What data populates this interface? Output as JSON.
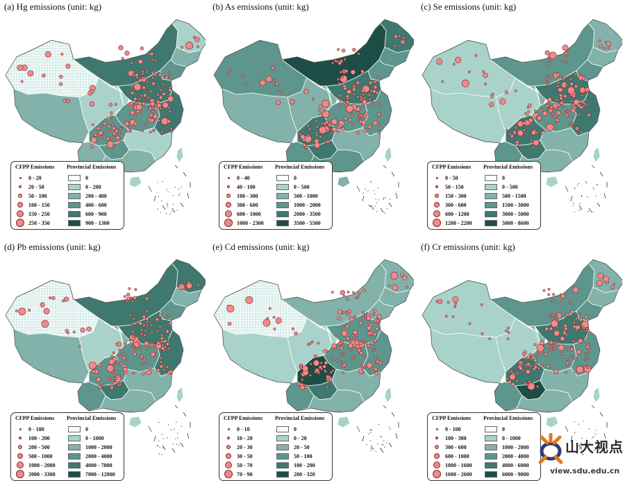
{
  "palette": {
    "none": "#f4fbfa",
    "l1": "#a8d2ca",
    "l2": "#82b2aa",
    "l3": "#5e958c",
    "l4": "#3f786f",
    "l5": "#1c4e46",
    "circle_fill": "#f08a8a",
    "circle_stroke": "#7a2a2a"
  },
  "legend_headers": {
    "cfpp": "CFPP Emissions",
    "provincial": "Provincial Emissions"
  },
  "panels": [
    {
      "title": "(a) Hg emissions (unit: kg)",
      "cfpp": [
        "0 - 20",
        "20 - 50",
        "50 - 100",
        "100 - 150",
        "150 - 250",
        "250 - 350"
      ],
      "provincial": [
        "0",
        "0 - 200",
        "200 - 400",
        "400 - 600",
        "600 - 900",
        "900 - 1300"
      ],
      "regions": {
        "xj": 0,
        "xz": 2,
        "qh": 1,
        "nm": 4,
        "gs": 1,
        "hlj": 1,
        "jl": 2,
        "ln": 3,
        "north": 4,
        "central": 3,
        "east": 4,
        "sc": 3,
        "yn": 2,
        "gz": 3,
        "south": 2,
        "se": 1,
        "hainan": 1,
        "taiwan": 1
      }
    },
    {
      "title": "(b) As emissions (unit: kg)",
      "cfpp": [
        "0 - 40",
        "40 - 100",
        "100 - 300",
        "300 - 600",
        "600 - 1000",
        "1000 - 2300"
      ],
      "provincial": [
        "0",
        "0 - 500",
        "500 - 1000",
        "1000 - 2000",
        "2000 - 3500",
        "3500 - 5500"
      ],
      "regions": {
        "xj": 3,
        "xz": 2,
        "qh": 2,
        "nm": 5,
        "gs": 2,
        "hlj": 4,
        "jl": 3,
        "ln": 3,
        "north": 4,
        "central": 3,
        "east": 3,
        "sc": 4,
        "yn": 3,
        "gz": 4,
        "south": 3,
        "se": 2,
        "hainan": 2,
        "taiwan": 1
      }
    },
    {
      "title": "(c) Se emissions (unit: kg)",
      "cfpp": [
        "0 - 50",
        "50 - 150",
        "150 - 300",
        "300 - 600",
        "600 - 1200",
        "1200 - 2200"
      ],
      "provincial": [
        "0",
        "0 - 500",
        "500 - 1500",
        "1500 - 3000",
        "3000 - 5000",
        "5000 - 8600"
      ],
      "regions": {
        "xj": 1,
        "xz": 1,
        "qh": 1,
        "nm": 3,
        "gs": 2,
        "hlj": 2,
        "jl": 2,
        "ln": 3,
        "north": 4,
        "central": 3,
        "east": 4,
        "sc": 4,
        "yn": 3,
        "gz": 4,
        "south": 2,
        "se": 2,
        "hainan": 1,
        "taiwan": 1
      }
    },
    {
      "title": "(d) Pb emissions (unit: kg)",
      "cfpp": [
        "0 - 100",
        "100 - 200",
        "200 - 500",
        "500 - 1000",
        "1000 - 2000",
        "2000 - 3300"
      ],
      "provincial": [
        "0",
        "0 - 1000",
        "1000 - 2000",
        "2000 - 4000",
        "4000 - 7000",
        "7000 - 12000"
      ],
      "regions": {
        "xj": 0,
        "xz": 2,
        "qh": 1,
        "nm": 4,
        "gs": 2,
        "hlj": 4,
        "jl": 2,
        "ln": 3,
        "north": 4,
        "central": 3,
        "east": 4,
        "sc": 3,
        "yn": 3,
        "gz": 4,
        "south": 2,
        "se": 2,
        "hainan": 1,
        "taiwan": 1
      }
    },
    {
      "title": "(e) Cd emissions (unit: kg)",
      "cfpp": [
        "0 - 10",
        "10 - 20",
        "20 - 30",
        "30 - 50",
        "50 - 70",
        "70 - 90"
      ],
      "provincial": [
        "0",
        "0 - 20",
        "20 - 50",
        "50 - 100",
        "100 - 200",
        "200 - 320"
      ],
      "regions": {
        "xj": 0,
        "xz": 1,
        "qh": 1,
        "nm": 2,
        "gs": 1,
        "hlj": 2,
        "jl": 2,
        "ln": 2,
        "north": 3,
        "central": 3,
        "east": 3,
        "sc": 5,
        "yn": 3,
        "gz": 4,
        "south": 2,
        "se": 2,
        "hainan": 1,
        "taiwan": 1
      }
    },
    {
      "title": "(f) Cr emissions (unit: kg)",
      "cfpp": [
        "0 - 100",
        "100 - 300",
        "300 - 600",
        "600 - 1000",
        "1000 - 1600",
        "1600 - 2600"
      ],
      "provincial": [
        "0",
        "0 - 1000",
        "1000 - 2000",
        "2000 - 4000",
        "4000 - 6000",
        "6000 - 9000"
      ],
      "regions": {
        "xj": 1,
        "xz": 1,
        "qh": 1,
        "nm": 3,
        "gs": 2,
        "hlj": 2,
        "jl": 2,
        "ln": 3,
        "north": 4,
        "central": 3,
        "east": 3,
        "sc": 4,
        "yn": 3,
        "gz": 5,
        "south": 2,
        "se": 2,
        "hainan": 1,
        "taiwan": 1
      }
    }
  ],
  "watermark": {
    "text": "山大视点",
    "url": "view.sdu.edu.cn"
  }
}
